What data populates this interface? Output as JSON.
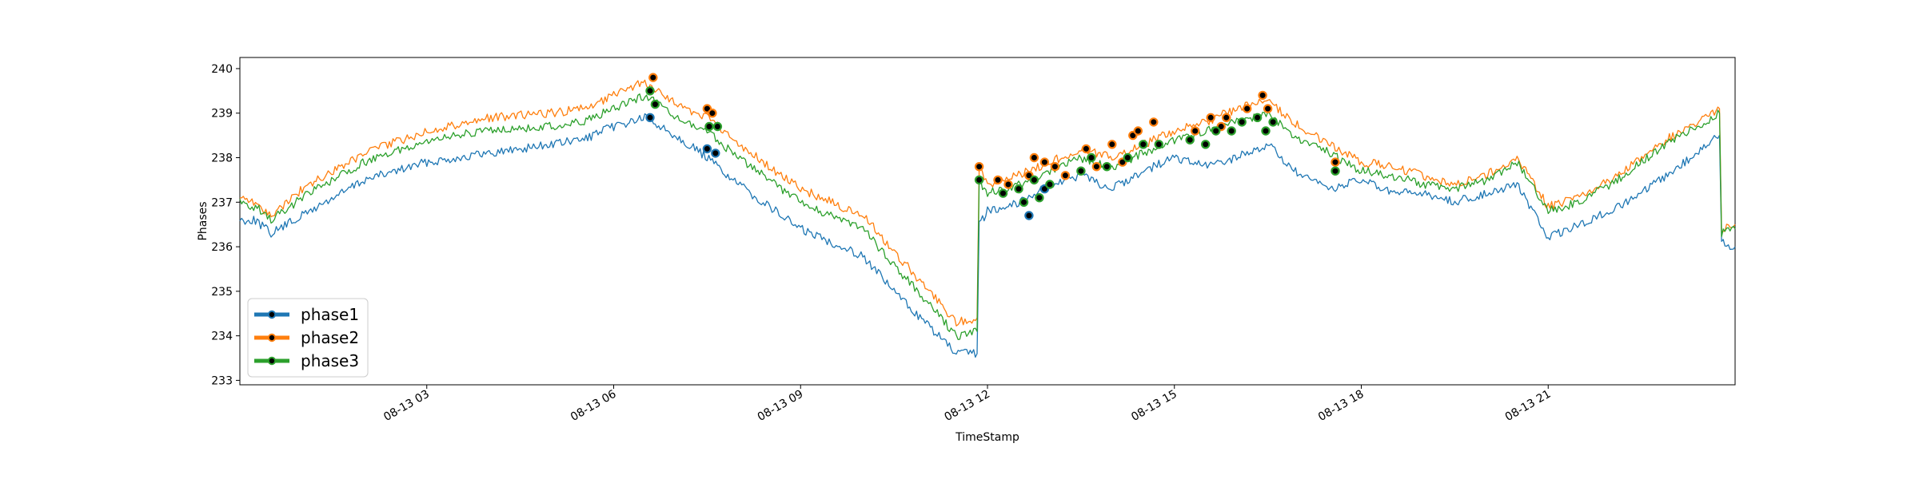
{
  "chart_data": {
    "type": "line",
    "title": "",
    "xlabel": "TimeStamp",
    "ylabel": "Phases",
    "xlim": [
      "2018-08-13 00:00",
      "2018-08-14 00:00"
    ],
    "ylim": [
      232.9,
      240.25
    ],
    "x_ticks": [
      {
        "x": "2018-08-13 03:00",
        "label": "08-13 03"
      },
      {
        "x": "2018-08-13 06:00",
        "label": "08-13 06"
      },
      {
        "x": "2018-08-13 09:00",
        "label": "08-13 09"
      },
      {
        "x": "2018-08-13 12:00",
        "label": "08-13 12"
      },
      {
        "x": "2018-08-13 15:00",
        "label": "08-13 15"
      },
      {
        "x": "2018-08-13 18:00",
        "label": "08-13 18"
      },
      {
        "x": "2018-08-13 21:00",
        "label": "08-13 21"
      }
    ],
    "y_ticks": [
      233,
      234,
      235,
      236,
      237,
      238,
      239,
      240
    ],
    "grid": false,
    "legend_position": "lower-left",
    "marker_color": "#000000",
    "x": [
      "2018-08-13 00:00",
      "2018-08-13 00:15",
      "2018-08-13 00:30",
      "2018-08-13 01:00",
      "2018-08-13 01:30",
      "2018-08-13 02:00",
      "2018-08-13 03:00",
      "2018-08-13 04:00",
      "2018-08-13 05:00",
      "2018-08-13 05:30",
      "2018-08-13 06:00",
      "2018-08-13 06:30",
      "2018-08-13 07:00",
      "2018-08-13 07:30",
      "2018-08-13 08:00",
      "2018-08-13 09:00",
      "2018-08-13 10:00",
      "2018-08-13 10:30",
      "2018-08-13 11:00",
      "2018-08-13 11:30",
      "2018-08-13 11:50",
      "2018-08-13 11:52",
      "2018-08-13 12:00",
      "2018-08-13 12:30",
      "2018-08-13 13:00",
      "2018-08-13 13:30",
      "2018-08-13 14:00",
      "2018-08-13 14:30",
      "2018-08-13 15:00",
      "2018-08-13 15:30",
      "2018-08-13 16:00",
      "2018-08-13 16:30",
      "2018-08-13 17:00",
      "2018-08-13 17:30",
      "2018-08-13 18:00",
      "2018-08-13 18:30",
      "2018-08-13 19:00",
      "2018-08-13 19:30",
      "2018-08-13 20:00",
      "2018-08-13 20:30",
      "2018-08-13 21:00",
      "2018-08-13 21:30",
      "2018-08-13 22:00",
      "2018-08-13 22:30",
      "2018-08-13 23:00",
      "2018-08-13 23:45",
      "2018-08-13 23:47",
      "2018-08-14 00:00"
    ],
    "series": [
      {
        "name": "phase1",
        "color": "#1f77b4",
        "values": [
          236.6,
          236.6,
          236.3,
          236.7,
          237.1,
          237.5,
          237.9,
          238.1,
          238.3,
          238.4,
          238.7,
          238.9,
          238.5,
          238.0,
          237.4,
          236.4,
          235.8,
          235.0,
          234.3,
          233.6,
          233.6,
          236.5,
          236.8,
          237.0,
          237.4,
          237.6,
          237.3,
          237.7,
          238.0,
          237.8,
          238.0,
          238.3,
          237.6,
          237.3,
          237.5,
          237.2,
          237.2,
          237.0,
          237.2,
          237.4,
          236.2,
          236.5,
          236.8,
          237.2,
          237.7,
          238.5,
          236.1,
          236.0
        ]
      },
      {
        "name": "phase2",
        "color": "#ff7f0e",
        "values": [
          237.1,
          237.0,
          236.7,
          237.3,
          237.7,
          238.1,
          238.6,
          238.9,
          239.0,
          239.1,
          239.4,
          239.7,
          239.2,
          238.9,
          238.3,
          237.3,
          236.7,
          235.9,
          235.1,
          234.3,
          234.4,
          237.8,
          237.4,
          237.6,
          237.9,
          238.2,
          238.0,
          238.3,
          238.6,
          238.8,
          239.1,
          239.3,
          238.7,
          238.3,
          237.9,
          237.8,
          237.6,
          237.4,
          237.6,
          238.0,
          236.9,
          237.1,
          237.5,
          238.0,
          238.5,
          239.1,
          236.4,
          236.5
        ]
      },
      {
        "name": "phase3",
        "color": "#2ca02c",
        "values": [
          237.0,
          236.9,
          236.6,
          237.1,
          237.5,
          237.9,
          238.4,
          238.6,
          238.7,
          238.8,
          239.1,
          239.4,
          238.9,
          238.6,
          238.0,
          237.0,
          236.4,
          235.6,
          234.8,
          234.0,
          234.1,
          237.5,
          237.2,
          237.4,
          237.7,
          238.0,
          237.8,
          238.1,
          238.4,
          238.6,
          238.8,
          239.0,
          238.4,
          238.1,
          237.7,
          237.6,
          237.4,
          237.3,
          237.5,
          237.9,
          236.8,
          237.0,
          237.4,
          237.9,
          238.4,
          239.0,
          236.3,
          236.4
        ]
      }
    ],
    "highlight_points": [
      {
        "series": "phase1",
        "points": [
          {
            "x": "2018-08-13 06:35",
            "y": 238.9
          },
          {
            "x": "2018-08-13 07:30",
            "y": 238.2
          },
          {
            "x": "2018-08-13 07:38",
            "y": 238.1
          },
          {
            "x": "2018-08-13 12:40",
            "y": 236.7
          },
          {
            "x": "2018-08-13 12:55",
            "y": 237.3
          }
        ]
      },
      {
        "series": "phase2",
        "points": [
          {
            "x": "2018-08-13 06:38",
            "y": 239.8
          },
          {
            "x": "2018-08-13 07:30",
            "y": 239.1
          },
          {
            "x": "2018-08-13 07:35",
            "y": 239.0
          },
          {
            "x": "2018-08-13 11:52",
            "y": 237.8
          },
          {
            "x": "2018-08-13 12:10",
            "y": 237.5
          },
          {
            "x": "2018-08-13 12:20",
            "y": 237.4
          },
          {
            "x": "2018-08-13 12:40",
            "y": 237.6
          },
          {
            "x": "2018-08-13 12:45",
            "y": 238.0
          },
          {
            "x": "2018-08-13 12:55",
            "y": 237.9
          },
          {
            "x": "2018-08-13 13:05",
            "y": 237.8
          },
          {
            "x": "2018-08-13 13:15",
            "y": 237.6
          },
          {
            "x": "2018-08-13 13:35",
            "y": 238.2
          },
          {
            "x": "2018-08-13 13:45",
            "y": 237.8
          },
          {
            "x": "2018-08-13 14:00",
            "y": 238.3
          },
          {
            "x": "2018-08-13 14:10",
            "y": 237.9
          },
          {
            "x": "2018-08-13 14:20",
            "y": 238.5
          },
          {
            "x": "2018-08-13 14:25",
            "y": 238.6
          },
          {
            "x": "2018-08-13 14:40",
            "y": 238.8
          },
          {
            "x": "2018-08-13 15:20",
            "y": 238.6
          },
          {
            "x": "2018-08-13 15:35",
            "y": 238.9
          },
          {
            "x": "2018-08-13 15:45",
            "y": 238.7
          },
          {
            "x": "2018-08-13 15:50",
            "y": 238.9
          },
          {
            "x": "2018-08-13 16:10",
            "y": 239.1
          },
          {
            "x": "2018-08-13 16:25",
            "y": 239.4
          },
          {
            "x": "2018-08-13 16:30",
            "y": 239.1
          },
          {
            "x": "2018-08-13 17:35",
            "y": 237.9
          }
        ]
      },
      {
        "series": "phase3",
        "points": [
          {
            "x": "2018-08-13 06:35",
            "y": 239.5
          },
          {
            "x": "2018-08-13 06:40",
            "y": 239.2
          },
          {
            "x": "2018-08-13 07:32",
            "y": 238.7
          },
          {
            "x": "2018-08-13 07:40",
            "y": 238.7
          },
          {
            "x": "2018-08-13 11:52",
            "y": 237.5
          },
          {
            "x": "2018-08-13 12:15",
            "y": 237.2
          },
          {
            "x": "2018-08-13 12:30",
            "y": 237.3
          },
          {
            "x": "2018-08-13 12:35",
            "y": 237.0
          },
          {
            "x": "2018-08-13 12:45",
            "y": 237.5
          },
          {
            "x": "2018-08-13 12:50",
            "y": 237.1
          },
          {
            "x": "2018-08-13 13:00",
            "y": 237.4
          },
          {
            "x": "2018-08-13 13:30",
            "y": 237.7
          },
          {
            "x": "2018-08-13 13:40",
            "y": 238.0
          },
          {
            "x": "2018-08-13 13:55",
            "y": 237.8
          },
          {
            "x": "2018-08-13 14:15",
            "y": 238.0
          },
          {
            "x": "2018-08-13 14:30",
            "y": 238.3
          },
          {
            "x": "2018-08-13 14:45",
            "y": 238.3
          },
          {
            "x": "2018-08-13 15:15",
            "y": 238.4
          },
          {
            "x": "2018-08-13 15:30",
            "y": 238.3
          },
          {
            "x": "2018-08-13 15:40",
            "y": 238.6
          },
          {
            "x": "2018-08-13 15:55",
            "y": 238.6
          },
          {
            "x": "2018-08-13 16:05",
            "y": 238.8
          },
          {
            "x": "2018-08-13 16:20",
            "y": 238.9
          },
          {
            "x": "2018-08-13 16:28",
            "y": 238.6
          },
          {
            "x": "2018-08-13 16:35",
            "y": 238.8
          },
          {
            "x": "2018-08-13 17:35",
            "y": 237.7
          }
        ]
      }
    ]
  }
}
